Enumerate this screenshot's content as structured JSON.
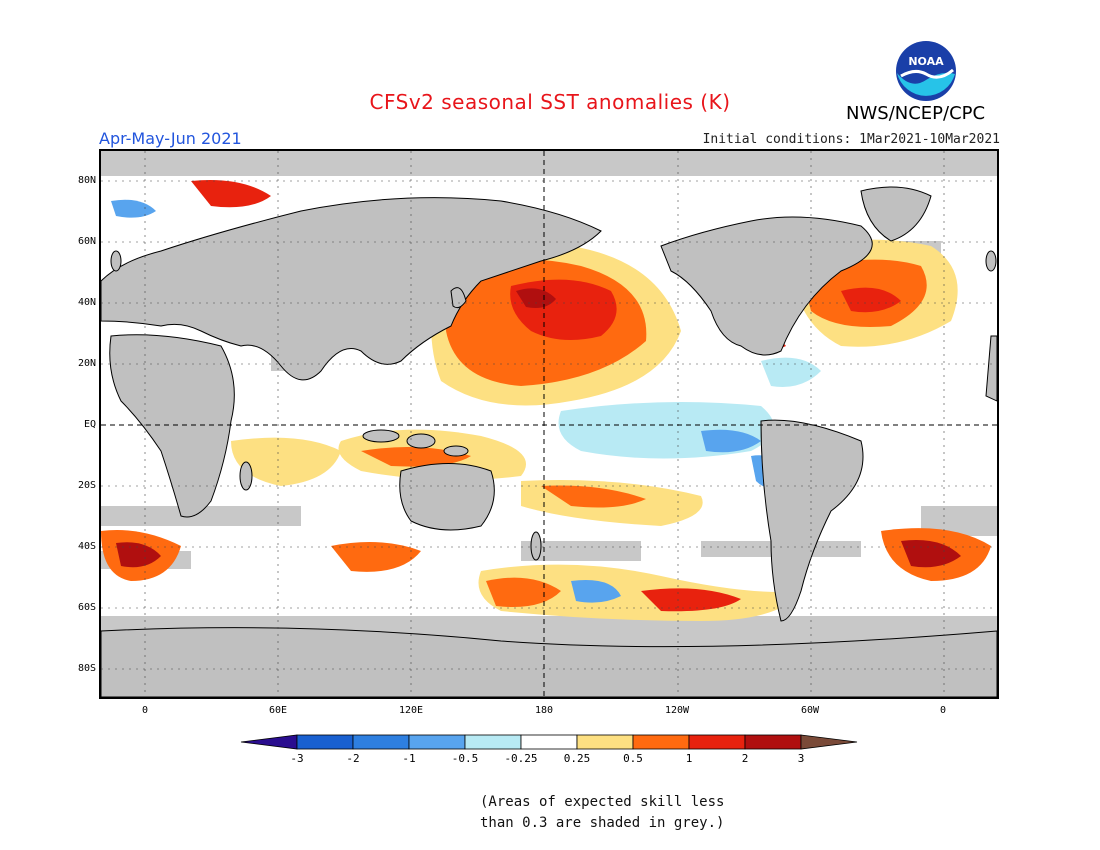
{
  "header": {
    "title": "CFSv2 seasonal SST anomalies (K)",
    "agency": "NWS/NCEP/CPC",
    "logo_text": "NOAA",
    "season": "Apr-May-Jun 2021",
    "initial_conditions": "Initial conditions: 1Mar2021-10Mar2021"
  },
  "axes": {
    "lat_labels": [
      "80N",
      "60N",
      "40N",
      "20N",
      "EQ",
      "20S",
      "40S",
      "60S",
      "80S"
    ],
    "lon_labels": [
      "0",
      "60E",
      "120E",
      "180",
      "120W",
      "60W",
      "0"
    ]
  },
  "colorbar": {
    "labels": [
      "-3",
      "-2",
      "-1",
      "-0.5",
      "-0.25",
      "0.25",
      "0.5",
      "1",
      "2",
      "3"
    ],
    "colors": [
      "#2a0d8f",
      "#1960d0",
      "#2e7fe0",
      "#58a4ee",
      "#b8eaf4",
      "#ffffff",
      "#fde082",
      "#ff6a10",
      "#e8220e",
      "#b00f0f",
      "#7a4a38"
    ]
  },
  "colors": {
    "land": "#c0c0c0",
    "skill_grey": "#c8c8c8",
    "title": "#e8151b",
    "season": "#2255dd"
  },
  "note": {
    "line1": "(Areas of expected skill less",
    "line2": "than 0.3 are shaded in grey.)"
  }
}
